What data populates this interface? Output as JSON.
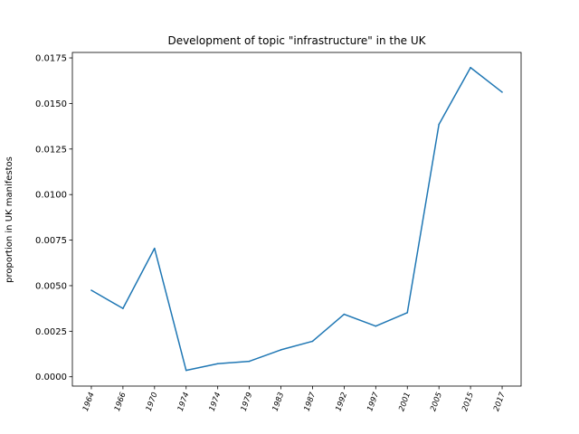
{
  "chart_data": {
    "type": "line",
    "title": "Development of topic \"infrastructure\" in the UK",
    "xlabel": "",
    "ylabel": "proportion in UK manifestos",
    "categories": [
      "1964",
      "1966",
      "1970",
      "1974",
      "1974",
      "1979",
      "1983",
      "1987",
      "1992",
      "1997",
      "2001",
      "2005",
      "2015",
      "2017"
    ],
    "series": [
      {
        "name": "infrastructure",
        "color": "#1f77b4",
        "values": [
          0.00475,
          0.00375,
          0.00705,
          0.00035,
          0.00072,
          0.00085,
          0.00148,
          0.00195,
          0.00343,
          0.00278,
          0.00352,
          0.01385,
          0.01697,
          0.01562
        ]
      }
    ],
    "ylim": [
      -0.00051,
      0.0178
    ],
    "yticks": [
      0.0,
      0.0025,
      0.005,
      0.0075,
      0.01,
      0.0125,
      0.015,
      0.0175
    ],
    "ytick_labels": [
      "0.0000",
      "0.0025",
      "0.0050",
      "0.0075",
      "0.0100",
      "0.0125",
      "0.0150",
      "0.0175"
    ],
    "grid": false,
    "legend": "none"
  }
}
